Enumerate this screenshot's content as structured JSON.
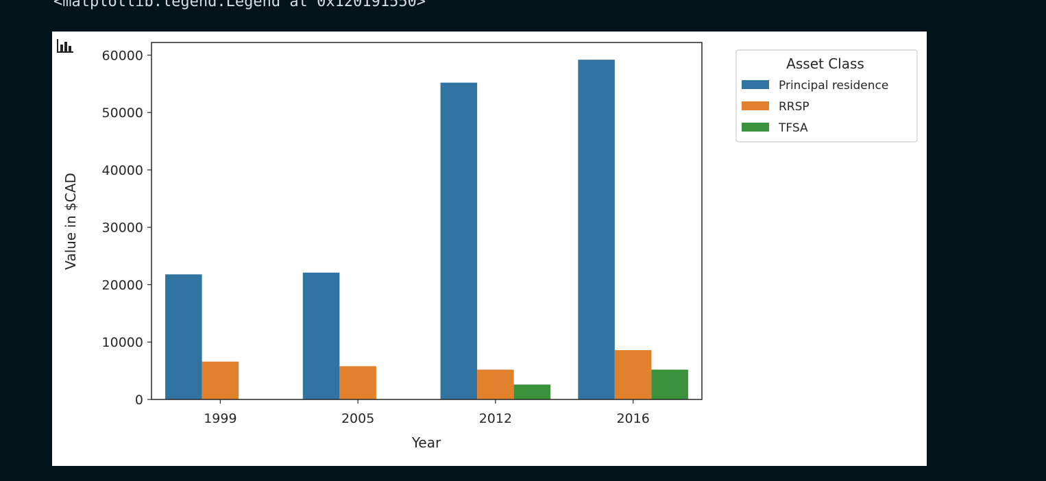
{
  "output": {
    "text": "<matplotlib.legend.Legend at 0x120191550>"
  },
  "icons": {
    "plot": "bar-chart-icon"
  },
  "chart_data": {
    "type": "bar",
    "categories": [
      "1999",
      "2005",
      "2012",
      "2016"
    ],
    "series": [
      {
        "name": "Principal residence",
        "color": "#3274a1",
        "values": [
          21800,
          22100,
          55200,
          59200
        ]
      },
      {
        "name": "RRSP",
        "color": "#e1812c",
        "values": [
          6600,
          5800,
          5200,
          8600
        ]
      },
      {
        "name": "TFSA",
        "color": "#3a923a",
        "values": [
          0,
          0,
          2600,
          5200
        ]
      }
    ],
    "xlabel": "Year",
    "ylabel": "Value in $CAD",
    "yticks": [
      0,
      10000,
      20000,
      30000,
      40000,
      50000,
      60000
    ],
    "ylim": [
      0,
      62200
    ],
    "legend": {
      "title": "Asset Class",
      "position": "upper right, outside plot"
    },
    "grid": false
  }
}
